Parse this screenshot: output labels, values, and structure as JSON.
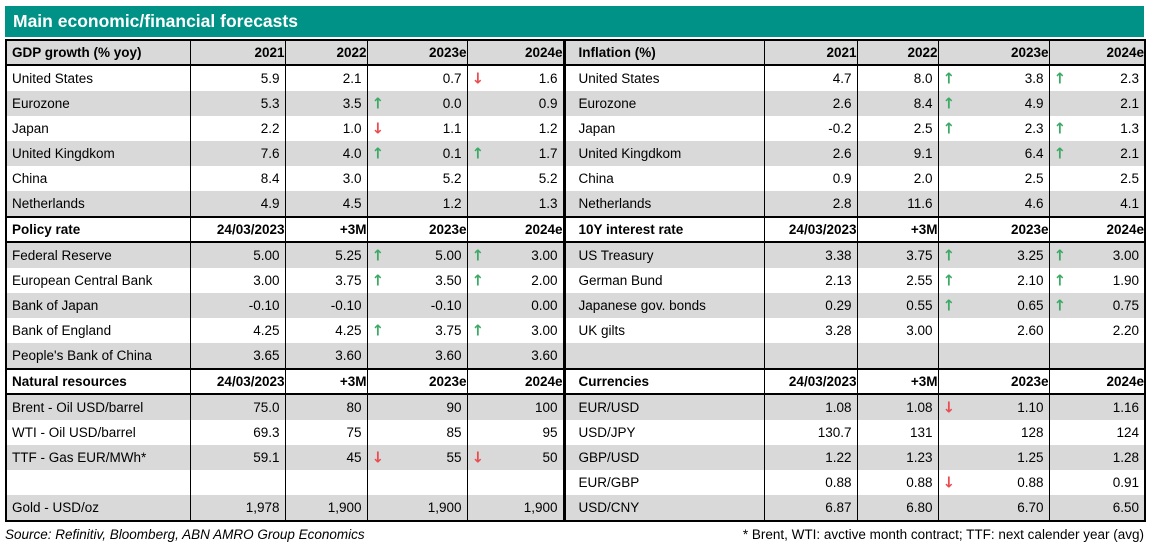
{
  "title": "Main economic/financial forecasts",
  "colors": {
    "accent": "#009286",
    "row_shade": "#D9D9D9",
    "arrow_up": "#3CAA64",
    "arrow_down": "#E94D50"
  },
  "icons": {
    "up": "↑",
    "down": "↓"
  },
  "footer": {
    "source": "Source: Refinitiv, Bloomberg, ABN AMRO Group Economics",
    "note": "* Brent, WTI: avctive month contract; TTF: next calender year (avg)"
  },
  "sections": [
    {
      "left": {
        "title": "GDP growth (% yoy)",
        "columns": [
          "2021",
          "2022",
          "2023e",
          "2024e"
        ],
        "rows": [
          {
            "label": "United States",
            "cells": [
              {
                "v": "5.9"
              },
              {
                "v": "2.1"
              },
              {
                "v": "0.7"
              },
              {
                "v": "1.6",
                "arrow": "down"
              }
            ]
          },
          {
            "label": "Eurozone",
            "cells": [
              {
                "v": "5.3"
              },
              {
                "v": "3.5"
              },
              {
                "v": "0.0",
                "arrow": "up"
              },
              {
                "v": "0.9"
              }
            ]
          },
          {
            "label": "Japan",
            "cells": [
              {
                "v": "2.2"
              },
              {
                "v": "1.0"
              },
              {
                "v": "1.1",
                "arrow": "down"
              },
              {
                "v": "1.2"
              }
            ]
          },
          {
            "label": "United Kingdkom",
            "cells": [
              {
                "v": "7.6"
              },
              {
                "v": "4.0"
              },
              {
                "v": "0.1",
                "arrow": "up"
              },
              {
                "v": "1.7",
                "arrow": "up"
              }
            ]
          },
          {
            "label": "China",
            "cells": [
              {
                "v": "8.4"
              },
              {
                "v": "3.0"
              },
              {
                "v": "5.2"
              },
              {
                "v": "5.2"
              }
            ]
          },
          {
            "label": "Netherlands",
            "cells": [
              {
                "v": "4.9"
              },
              {
                "v": "4.5"
              },
              {
                "v": "1.2"
              },
              {
                "v": "1.3"
              }
            ]
          }
        ]
      },
      "right": {
        "title": "Inflation (%)",
        "columns": [
          "2021",
          "2022",
          "2023e",
          "2024e"
        ],
        "rows": [
          {
            "label": "United States",
            "cells": [
              {
                "v": "4.7"
              },
              {
                "v": "8.0"
              },
              {
                "v": "3.8",
                "arrow": "up"
              },
              {
                "v": "2.3",
                "arrow": "up"
              }
            ]
          },
          {
            "label": "Eurozone",
            "cells": [
              {
                "v": "2.6"
              },
              {
                "v": "8.4"
              },
              {
                "v": "4.9",
                "arrow": "up"
              },
              {
                "v": "2.1"
              }
            ]
          },
          {
            "label": "Japan",
            "cells": [
              {
                "v": "-0.2"
              },
              {
                "v": "2.5"
              },
              {
                "v": "2.3",
                "arrow": "up"
              },
              {
                "v": "1.3",
                "arrow": "up"
              }
            ]
          },
          {
            "label": "United Kingdkom",
            "cells": [
              {
                "v": "2.6"
              },
              {
                "v": "9.1"
              },
              {
                "v": "6.4"
              },
              {
                "v": "2.1",
                "arrow": "up"
              }
            ]
          },
          {
            "label": "China",
            "cells": [
              {
                "v": "0.9"
              },
              {
                "v": "2.0"
              },
              {
                "v": "2.5"
              },
              {
                "v": "2.5"
              }
            ]
          },
          {
            "label": "Netherlands",
            "cells": [
              {
                "v": "2.8"
              },
              {
                "v": "11.6"
              },
              {
                "v": "4.6"
              },
              {
                "v": "4.1"
              }
            ]
          }
        ]
      }
    },
    {
      "left": {
        "title": "Policy rate",
        "columns": [
          "24/03/2023",
          "+3M",
          "2023e",
          "2024e"
        ],
        "rows": [
          {
            "label": "Federal Reserve",
            "cells": [
              {
                "v": "5.00"
              },
              {
                "v": "5.25"
              },
              {
                "v": "5.00",
                "arrow": "up"
              },
              {
                "v": "3.00",
                "arrow": "up"
              }
            ]
          },
          {
            "label": "European Central Bank",
            "cells": [
              {
                "v": "3.00"
              },
              {
                "v": "3.75"
              },
              {
                "v": "3.50",
                "arrow": "up"
              },
              {
                "v": "2.00",
                "arrow": "up"
              }
            ]
          },
          {
            "label": "Bank of Japan",
            "cells": [
              {
                "v": "-0.10"
              },
              {
                "v": "-0.10"
              },
              {
                "v": "-0.10"
              },
              {
                "v": "0.00"
              }
            ]
          },
          {
            "label": "Bank of England",
            "cells": [
              {
                "v": "4.25"
              },
              {
                "v": "4.25"
              },
              {
                "v": "3.75",
                "arrow": "up"
              },
              {
                "v": "3.00",
                "arrow": "up"
              }
            ]
          },
          {
            "label": "People's Bank of China",
            "cells": [
              {
                "v": "3.65"
              },
              {
                "v": "3.60"
              },
              {
                "v": "3.60"
              },
              {
                "v": "3.60"
              }
            ]
          }
        ]
      },
      "right": {
        "title": "10Y interest rate",
        "columns": [
          "24/03/2023",
          "+3M",
          "2023e",
          "2024e"
        ],
        "rows": [
          {
            "label": "US Treasury",
            "cells": [
              {
                "v": "3.38"
              },
              {
                "v": "3.75"
              },
              {
                "v": "3.25",
                "arrow": "up"
              },
              {
                "v": "3.00",
                "arrow": "up"
              }
            ]
          },
          {
            "label": "German Bund",
            "cells": [
              {
                "v": "2.13"
              },
              {
                "v": "2.55"
              },
              {
                "v": "2.10",
                "arrow": "up"
              },
              {
                "v": "1.90",
                "arrow": "up"
              }
            ]
          },
          {
            "label": "Japanese gov. bonds",
            "cells": [
              {
                "v": "0.29"
              },
              {
                "v": "0.55"
              },
              {
                "v": "0.65",
                "arrow": "up"
              },
              {
                "v": "0.75",
                "arrow": "up"
              }
            ]
          },
          {
            "label": "UK gilts",
            "cells": [
              {
                "v": "3.28"
              },
              {
                "v": "3.00"
              },
              {
                "v": "2.60"
              },
              {
                "v": "2.20"
              }
            ]
          },
          {
            "label": "",
            "cells": [
              {
                "v": ""
              },
              {
                "v": ""
              },
              {
                "v": ""
              },
              {
                "v": ""
              }
            ]
          }
        ]
      }
    },
    {
      "left": {
        "title": "Natural resources",
        "columns": [
          "24/03/2023",
          "+3M",
          "2023e",
          "2024e"
        ],
        "rows": [
          {
            "label": "Brent - Oil USD/barrel",
            "cells": [
              {
                "v": "75.0"
              },
              {
                "v": "80"
              },
              {
                "v": "90"
              },
              {
                "v": "100"
              }
            ]
          },
          {
            "label": "WTI - Oil USD/barrel",
            "cells": [
              {
                "v": "69.3"
              },
              {
                "v": "75"
              },
              {
                "v": "85"
              },
              {
                "v": "95"
              }
            ]
          },
          {
            "label": "TTF - Gas EUR/MWh*",
            "cells": [
              {
                "v": "59.1"
              },
              {
                "v": "45"
              },
              {
                "v": "55",
                "arrow": "down"
              },
              {
                "v": "50",
                "arrow": "down"
              }
            ]
          },
          {
            "label": "",
            "cells": [
              {
                "v": ""
              },
              {
                "v": ""
              },
              {
                "v": ""
              },
              {
                "v": ""
              }
            ]
          },
          {
            "label": "Gold - USD/oz",
            "cells": [
              {
                "v": "1,978"
              },
              {
                "v": "1,900"
              },
              {
                "v": "1,900"
              },
              {
                "v": "1,900"
              }
            ]
          }
        ]
      },
      "right": {
        "title": "Currencies",
        "columns": [
          "24/03/2023",
          "+3M",
          "2023e",
          "2024e"
        ],
        "rows": [
          {
            "label": "EUR/USD",
            "cells": [
              {
                "v": "1.08"
              },
              {
                "v": "1.08"
              },
              {
                "v": "1.10",
                "arrow": "down"
              },
              {
                "v": "1.16"
              }
            ]
          },
          {
            "label": "USD/JPY",
            "cells": [
              {
                "v": "130.7"
              },
              {
                "v": "131"
              },
              {
                "v": "128"
              },
              {
                "v": "124"
              }
            ]
          },
          {
            "label": "GBP/USD",
            "cells": [
              {
                "v": "1.22"
              },
              {
                "v": "1.23"
              },
              {
                "v": "1.25"
              },
              {
                "v": "1.28"
              }
            ]
          },
          {
            "label": "EUR/GBP",
            "cells": [
              {
                "v": "0.88"
              },
              {
                "v": "0.88"
              },
              {
                "v": "0.88",
                "arrow": "down"
              },
              {
                "v": "0.91"
              }
            ]
          },
          {
            "label": "USD/CNY",
            "cells": [
              {
                "v": "6.87"
              },
              {
                "v": "6.80"
              },
              {
                "v": "6.70"
              },
              {
                "v": "6.50"
              }
            ]
          }
        ]
      }
    }
  ]
}
